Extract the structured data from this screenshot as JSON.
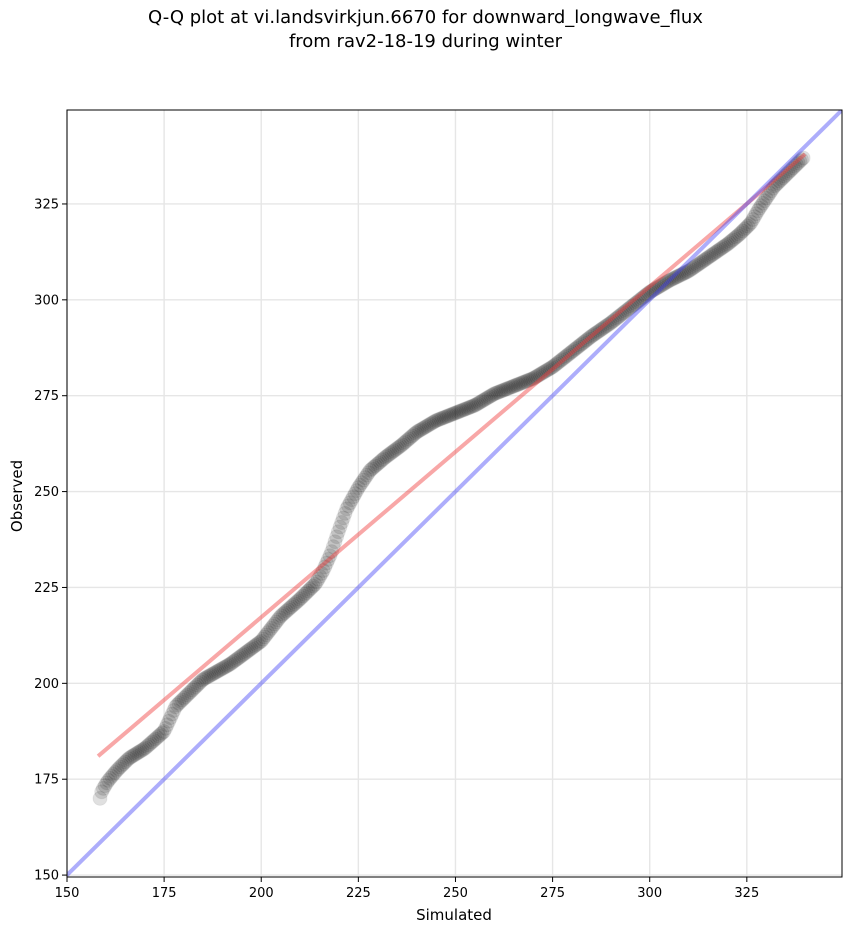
{
  "chart_data": {
    "type": "scatter",
    "title_lines": [
      "Q-Q plot at vi.landsvirkjun.6670 for downward_longwave_flux",
      "from rav2-18-19 during winter"
    ],
    "xlabel": "Simulated",
    "ylabel": "Observed",
    "xlim": [
      150,
      349.5
    ],
    "ylim": [
      149.5,
      349.5
    ],
    "xticks": [
      150,
      175,
      200,
      225,
      250,
      275,
      300,
      325
    ],
    "yticks": [
      150,
      175,
      200,
      225,
      250,
      275,
      300,
      325
    ],
    "grid": true,
    "quantile_anchors": {
      "simulated": [
        158.5,
        159,
        160.5,
        163,
        166,
        170,
        175,
        178,
        185,
        192,
        200,
        205,
        210,
        214,
        216,
        218,
        220,
        222,
        225,
        228,
        232,
        236,
        240,
        245,
        250,
        255,
        260,
        265,
        270,
        275,
        280,
        285,
        290,
        295,
        300,
        305,
        310,
        315,
        320,
        323,
        326,
        328,
        330,
        332,
        334,
        336,
        338,
        339.5
      ],
      "observed": [
        170,
        172,
        174.5,
        177.5,
        180.5,
        183,
        187.5,
        194,
        201,
        205,
        211,
        217.5,
        222,
        226,
        229.5,
        234,
        240,
        245.5,
        251,
        255.5,
        259,
        262,
        265.5,
        268.5,
        270.5,
        272.5,
        275.5,
        277.5,
        279.5,
        282.5,
        286.5,
        290.5,
        294,
        298,
        302,
        305,
        307.5,
        311,
        314.5,
        317,
        320,
        323.5,
        326.5,
        329.5,
        331.5,
        333.5,
        335.5,
        337
      ]
    },
    "series": [
      {
        "name": "quantiles",
        "color": "#000000",
        "opacity": 0.12
      },
      {
        "name": "regression fit",
        "color": "#f03c3c",
        "opacity": 0.45,
        "x": [
          158,
          340
        ],
        "y": [
          181,
          338
        ]
      },
      {
        "name": "1:1 line",
        "color": "#3b3bf5",
        "opacity": 0.42,
        "x": [
          150,
          349.5
        ],
        "y": [
          150,
          349.5
        ]
      }
    ]
  }
}
